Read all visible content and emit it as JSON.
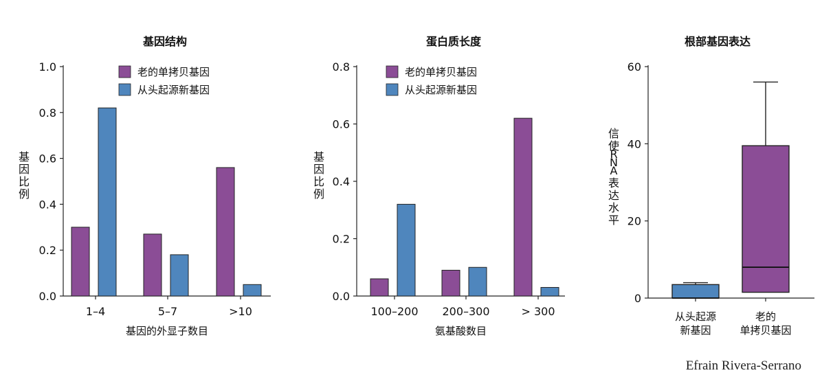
{
  "colors": {
    "old": "#8b4d96",
    "new": "#4f86bd",
    "axis": "#222222",
    "text": "#111111"
  },
  "credit": "Efrain Rivera-Serrano",
  "legend": {
    "old": "老的单拷贝基因",
    "new": "从头起源新基因"
  },
  "chart_data": [
    {
      "type": "bar",
      "title": "基因结构",
      "xlabel": "基因的外显子数目",
      "ylabel": "基因比例",
      "ylim": [
        0,
        1.0
      ],
      "yticks": [
        "0.0",
        "0.2",
        "0.4",
        "0.6",
        "0.8",
        "1.0"
      ],
      "categories": [
        "1–4",
        "5–7",
        ">10"
      ],
      "series": [
        {
          "name": "老的单拷贝基因",
          "values": [
            0.3,
            0.27,
            0.56
          ]
        },
        {
          "name": "从头起源新基因",
          "values": [
            0.82,
            0.18,
            0.05
          ]
        }
      ],
      "legend_position": "top-center"
    },
    {
      "type": "bar",
      "title": "蛋白质长度",
      "xlabel": "氨基酸数目",
      "ylabel": "基因比例",
      "ylim": [
        0,
        0.8
      ],
      "yticks": [
        "0.0",
        "0.2",
        "0.4",
        "0.6",
        "0.8"
      ],
      "categories": [
        "100–200",
        "200–300",
        "> 300"
      ],
      "series": [
        {
          "name": "老的单拷贝基因",
          "values": [
            0.06,
            0.09,
            0.62
          ]
        },
        {
          "name": "从头起源新基因",
          "values": [
            0.32,
            0.1,
            0.03
          ]
        }
      ],
      "legend_position": "top-center"
    },
    {
      "type": "box",
      "title": "根部基因表达",
      "ylabel": "信使RNA表达水平",
      "ylim": [
        0,
        60
      ],
      "yticks": [
        "0",
        "20",
        "40",
        "60"
      ],
      "categories": [
        "从头起源\n新基因",
        "老的\n单拷贝基因"
      ],
      "boxes": [
        {
          "min": 0,
          "q1": 0,
          "median": 0,
          "q3": 3.5,
          "max": 4
        },
        {
          "min": 1.5,
          "q1": 1.5,
          "median": 8,
          "q3": 39.5,
          "max": 56
        }
      ]
    }
  ]
}
